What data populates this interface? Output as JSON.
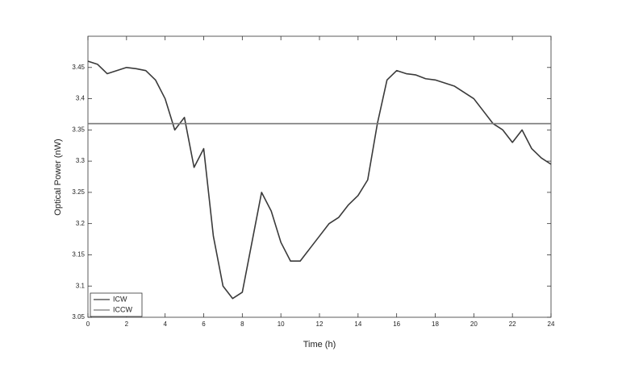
{
  "chart_data": {
    "type": "line",
    "x_label": "Time (h)",
    "y_label": "Optical Power (nW)",
    "x": [
      0,
      0.5,
      1,
      1.5,
      2,
      2.5,
      3,
      3.5,
      4,
      4.5,
      5,
      5.5,
      6,
      6.5,
      7,
      7.5,
      8,
      8.5,
      9,
      9.5,
      10,
      10.5,
      11,
      11.5,
      12,
      12.5,
      13,
      13.5,
      14,
      14.5,
      15,
      15.5,
      16,
      16.5,
      17,
      17.5,
      18,
      18.5,
      19,
      19.5,
      20,
      20.5,
      21,
      21.5,
      22,
      22.5,
      23,
      23.5,
      24
    ],
    "series": [
      {
        "name": "ICW",
        "color": "#3a3a3a",
        "values": [
          3.46,
          3.455,
          3.44,
          3.445,
          3.45,
          3.448,
          3.445,
          3.43,
          3.4,
          3.35,
          3.37,
          3.29,
          3.32,
          3.18,
          3.1,
          3.08,
          3.09,
          3.17,
          3.25,
          3.22,
          3.17,
          3.14,
          3.14,
          3.16,
          3.18,
          3.2,
          3.21,
          3.23,
          3.245,
          3.27,
          3.36,
          3.43,
          3.445,
          3.44,
          3.438,
          3.432,
          3.43,
          3.425,
          3.42,
          3.41,
          3.4,
          3.38,
          3.36,
          3.35,
          3.33,
          3.35,
          3.32,
          3.305,
          3.295
        ]
      },
      {
        "name": "ICCW",
        "color": "#777777",
        "values": [
          3.36,
          3.36,
          3.36,
          3.36,
          3.36,
          3.36,
          3.36,
          3.36,
          3.36,
          3.36,
          3.36,
          3.36,
          3.36,
          3.36,
          3.36,
          3.36,
          3.36,
          3.36,
          3.36,
          3.36,
          3.36,
          3.36,
          3.36,
          3.36,
          3.36,
          3.36,
          3.36,
          3.36,
          3.36,
          3.36,
          3.36,
          3.36,
          3.36,
          3.36,
          3.36,
          3.36,
          3.36,
          3.36,
          3.36,
          3.36,
          3.36,
          3.36,
          3.36,
          3.36,
          3.36,
          3.36,
          3.36,
          3.36,
          3.36
        ]
      }
    ],
    "xlim": [
      0,
      24
    ],
    "xticks": [
      0,
      2,
      4,
      6,
      8,
      10,
      12,
      14,
      16,
      18,
      20,
      22,
      24
    ],
    "ylim": [
      3.05,
      3.5
    ],
    "yticks": [
      3.05,
      3.1,
      3.15,
      3.2,
      3.25,
      3.3,
      3.35,
      3.4,
      3.45
    ],
    "grid": false,
    "legend": "lower left"
  }
}
